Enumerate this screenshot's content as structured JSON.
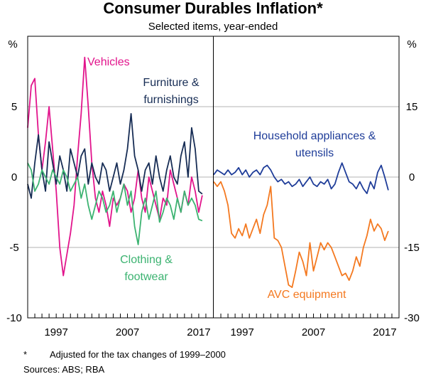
{
  "chart_data": {
    "type": "line",
    "title": "Consumer Durables Inflation*",
    "subtitle": "Selected items, year-ended",
    "footnote_marker": "*",
    "footnote": "Adjusted for the tax changes of 1999–2000",
    "sources": "Sources: ABS; RBA",
    "panels": [
      {
        "name": "left",
        "ylabel": "%",
        "ylim": [
          -10,
          10
        ],
        "yticks": [
          -10,
          -5,
          0,
          5
        ],
        "xlim": [
          1993,
          2019
        ],
        "xticks": [
          1997,
          2007,
          2017
        ],
        "series": [
          {
            "name": "Vehicles",
            "label": "Vehicles",
            "color": "#e2148c",
            "x": [
              1993.0,
              1993.5,
              1994.0,
              1994.5,
              1995.0,
              1995.5,
              1996.0,
              1996.5,
              1997.0,
              1997.5,
              1998.0,
              1998.5,
              1999.0,
              1999.5,
              2000.0,
              2000.5,
              2001.0,
              2001.5,
              2002.0,
              2002.5,
              2003.0,
              2003.5,
              2004.0,
              2004.5,
              2005.0,
              2005.5,
              2006.0,
              2006.5,
              2007.0,
              2007.5,
              2008.0,
              2008.5,
              2009.0,
              2009.5,
              2010.0,
              2010.5,
              2011.0,
              2011.5,
              2012.0,
              2012.5,
              2013.0,
              2013.5,
              2014.0,
              2014.5,
              2015.0,
              2015.5,
              2016.0,
              2016.5,
              2017.0,
              2017.5
            ],
            "values": [
              3.5,
              6.5,
              7.0,
              3.0,
              0.5,
              2.5,
              5.0,
              2.0,
              -1.0,
              -5.0,
              -7.0,
              -5.5,
              -4.0,
              -2.0,
              1.5,
              4.5,
              8.5,
              5.0,
              1.0,
              -1.5,
              -2.5,
              -1.0,
              -2.0,
              -3.5,
              -1.5,
              -2.0,
              -1.5,
              -0.5,
              -1.0,
              -2.5,
              -1.5,
              0.5,
              -1.5,
              -2.5,
              0.0,
              -1.0,
              -2.0,
              -3.0,
              -1.5,
              -2.0,
              0.5,
              -0.5,
              -1.5,
              -2.5,
              -1.0,
              -2.0,
              0.0,
              -1.0,
              -2.5,
              -1.3
            ]
          },
          {
            "name": "Furniture & furnishings",
            "label": "Furniture & furnishings",
            "color": "#172d55",
            "x": [
              1993.0,
              1993.5,
              1994.0,
              1994.5,
              1995.0,
              1995.5,
              1996.0,
              1996.5,
              1997.0,
              1997.5,
              1998.0,
              1998.5,
              1999.0,
              1999.5,
              2000.0,
              2000.5,
              2001.0,
              2001.5,
              2002.0,
              2002.5,
              2003.0,
              2003.5,
              2004.0,
              2004.5,
              2005.0,
              2005.5,
              2006.0,
              2006.5,
              2007.0,
              2007.5,
              2008.0,
              2008.5,
              2009.0,
              2009.5,
              2010.0,
              2010.5,
              2011.0,
              2011.5,
              2012.0,
              2012.5,
              2013.0,
              2013.5,
              2014.0,
              2014.5,
              2015.0,
              2015.5,
              2016.0,
              2016.5,
              2017.0,
              2017.5
            ],
            "values": [
              -0.5,
              -1.5,
              1.0,
              3.0,
              0.5,
              -1.0,
              2.5,
              1.0,
              -0.5,
              1.5,
              0.5,
              -1.0,
              2.0,
              1.0,
              0.0,
              1.5,
              2.0,
              -0.5,
              1.0,
              0.0,
              -0.5,
              1.0,
              0.5,
              -1.0,
              0.0,
              1.0,
              -0.5,
              0.5,
              2.0,
              4.5,
              1.5,
              0.5,
              -1.0,
              0.5,
              1.0,
              -0.5,
              1.5,
              0.0,
              -1.0,
              0.5,
              1.5,
              0.0,
              -0.5,
              1.5,
              2.5,
              0.0,
              3.5,
              2.0,
              -1.0,
              -1.2
            ]
          },
          {
            "name": "Clothing & footwear",
            "label": "Clothing & footwear",
            "color": "#3cb371",
            "x": [
              1993.0,
              1993.5,
              1994.0,
              1994.5,
              1995.0,
              1995.5,
              1996.0,
              1996.5,
              1997.0,
              1997.5,
              1998.0,
              1998.5,
              1999.0,
              1999.5,
              2000.0,
              2000.5,
              2001.0,
              2001.5,
              2002.0,
              2002.5,
              2003.0,
              2003.5,
              2004.0,
              2004.5,
              2005.0,
              2005.5,
              2006.0,
              2006.5,
              2007.0,
              2007.5,
              2008.0,
              2008.5,
              2009.0,
              2009.5,
              2010.0,
              2010.5,
              2011.0,
              2011.5,
              2012.0,
              2012.5,
              2013.0,
              2013.5,
              2014.0,
              2014.5,
              2015.0,
              2015.5,
              2016.0,
              2016.5,
              2017.0,
              2017.5
            ],
            "values": [
              1.0,
              0.5,
              -1.0,
              -0.5,
              0.5,
              0.0,
              -0.5,
              0.5,
              0.0,
              -0.5,
              0.5,
              0.0,
              -1.0,
              -0.5,
              0.0,
              -1.5,
              -0.5,
              -2.0,
              -3.0,
              -2.0,
              -1.0,
              -1.5,
              -2.5,
              -2.0,
              -1.0,
              -2.5,
              -1.5,
              -0.5,
              -2.0,
              -1.0,
              -3.5,
              -4.8,
              -2.5,
              -1.5,
              -3.0,
              -2.0,
              -1.0,
              -3.2,
              -2.5,
              -1.5,
              -2.0,
              -3.0,
              -1.5,
              -2.5,
              -1.0,
              -2.0,
              -1.5,
              -2.0,
              -3.0,
              -3.1
            ]
          }
        ],
        "annotations": [
          "Vehicles",
          "Furniture &",
          "furnishings",
          "Clothing &",
          "footwear"
        ]
      },
      {
        "name": "right",
        "ylabel": "%",
        "ylim": [
          -30,
          30
        ],
        "yticks": [
          -30,
          -15,
          0,
          15
        ],
        "xlim": [
          1993,
          2019
        ],
        "xticks": [
          1997,
          2007,
          2017
        ],
        "series": [
          {
            "name": "Household appliances & utensils",
            "label": "Household appliances & utensils",
            "color": "#1f3d99",
            "x": [
              1993.0,
              1993.5,
              1994.0,
              1994.5,
              1995.0,
              1995.5,
              1996.0,
              1996.5,
              1997.0,
              1997.5,
              1998.0,
              1998.5,
              1999.0,
              1999.5,
              2000.0,
              2000.5,
              2001.0,
              2001.5,
              2002.0,
              2002.5,
              2003.0,
              2003.5,
              2004.0,
              2004.5,
              2005.0,
              2005.5,
              2006.0,
              2006.5,
              2007.0,
              2007.5,
              2008.0,
              2008.5,
              2009.0,
              2009.5,
              2010.0,
              2010.5,
              2011.0,
              2011.5,
              2012.0,
              2012.5,
              2013.0,
              2013.5,
              2014.0,
              2014.5,
              2015.0,
              2015.5,
              2016.0,
              2016.5,
              2017.0,
              2017.5
            ],
            "values": [
              0.5,
              1.5,
              1.0,
              0.5,
              1.5,
              0.5,
              1.0,
              2.0,
              0.5,
              1.5,
              0.0,
              1.0,
              1.5,
              0.5,
              2.0,
              2.5,
              1.5,
              0.0,
              -1.0,
              -0.5,
              -1.5,
              -1.0,
              -2.0,
              -1.5,
              -0.5,
              -2.0,
              -1.0,
              0.0,
              -1.5,
              -2.0,
              -1.0,
              -1.5,
              -0.5,
              -2.5,
              -1.5,
              1.0,
              3.0,
              1.0,
              -1.0,
              -1.5,
              -2.5,
              -1.0,
              -2.5,
              -3.5,
              -1.0,
              -2.5,
              1.0,
              2.5,
              0.0,
              -2.8
            ]
          },
          {
            "name": "AVC equipment",
            "label": "AVC equipment",
            "color": "#f47920",
            "x": [
              1993.0,
              1993.5,
              1994.0,
              1994.5,
              1995.0,
              1995.5,
              1996.0,
              1996.5,
              1997.0,
              1997.5,
              1998.0,
              1998.5,
              1999.0,
              1999.5,
              2000.0,
              2000.5,
              2001.0,
              2001.5,
              2002.0,
              2002.5,
              2003.0,
              2003.5,
              2004.0,
              2004.5,
              2005.0,
              2005.5,
              2006.0,
              2006.5,
              2007.0,
              2007.5,
              2008.0,
              2008.5,
              2009.0,
              2009.5,
              2010.0,
              2010.5,
              2011.0,
              2011.5,
              2012.0,
              2012.5,
              2013.0,
              2013.5,
              2014.0,
              2014.5,
              2015.0,
              2015.5,
              2016.0,
              2016.5,
              2017.0,
              2017.5
            ],
            "values": [
              -1.0,
              -2.0,
              -1.0,
              -3.0,
              -6.0,
              -12.0,
              -13.0,
              -11.0,
              -12.5,
              -10.0,
              -13.0,
              -11.0,
              -9.0,
              -12.0,
              -8.0,
              -6.0,
              -2.0,
              -13.0,
              -13.5,
              -15.0,
              -19.0,
              -23.0,
              -23.5,
              -20.0,
              -16.0,
              -18.0,
              -21.0,
              -14.0,
              -20.0,
              -17.0,
              -14.0,
              -15.5,
              -14.0,
              -15.0,
              -17.0,
              -19.0,
              -21.0,
              -20.5,
              -22.0,
              -20.0,
              -17.0,
              -19.0,
              -15.0,
              -12.5,
              -9.0,
              -11.5,
              -10.0,
              -11.0,
              -13.5,
              -11.5
            ]
          }
        ],
        "annotations": [
          "Household appliances &",
          "utensils",
          "AVC equipment"
        ]
      }
    ]
  }
}
